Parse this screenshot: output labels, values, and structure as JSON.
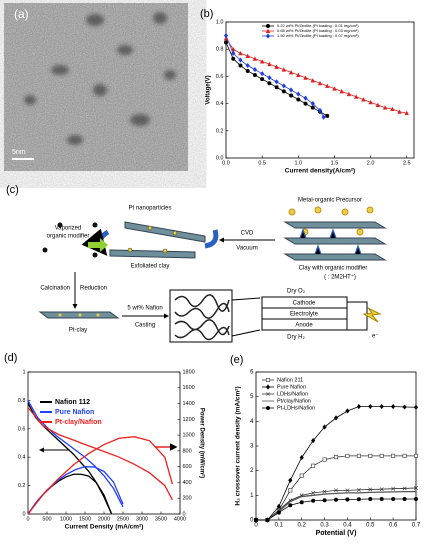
{
  "panels": {
    "a": {
      "label": "(a)",
      "scale_bar": "5nm"
    },
    "c": {
      "label": "(c)",
      "pt_nanoparticles": "Pt nanoparticles",
      "precursor": "Metal-organic Precursor",
      "vaporized": "Vaporized",
      "organic_modifier": "organic modifier",
      "cvd": "CVD",
      "vacuum": "Vacuum",
      "exfoliated": "Exfoliated clay",
      "clay_modifier": "Clay with organic modifier",
      "modifier_key": "( : 2M2HT⁺)",
      "calcination": "Calcination",
      "reduction": "Reduction",
      "pt_clay": "Pt-clay",
      "nafion": "5 wt% Nafion",
      "casting": "Casting",
      "dry_o2": "Dry O₂",
      "cathode": "Cathode",
      "electrolyte": "Electrolyte",
      "anode": "Anode",
      "dry_h2": "Dry H₂",
      "electron": "e⁻"
    }
  },
  "chart_data": [
    {
      "type": "line",
      "panel_label": "(b)",
      "xlabel": "Current density(A/cm²)",
      "ylabel": "Voltage(V)",
      "xlim": [
        0,
        2.6
      ],
      "ylim": [
        0,
        1.0
      ],
      "xticks": [
        {
          "value": 0,
          "label": "0.0"
        },
        0.5,
        {
          "value": 1,
          "label": "1.0"
        },
        1.5,
        {
          "value": 2,
          "label": "2.0"
        },
        2.5
      ],
      "yticks": [
        {
          "value": 0,
          "label": "0.0"
        },
        0.2,
        0.4,
        0.6,
        0.8,
        {
          "value": 1,
          "label": "1.0"
        }
      ],
      "legend": "upper right",
      "series": [
        {
          "name": "0.22 wt% Pt/Zeolite (Pt loading : 0.01 mg/cm²)",
          "color": "#000000",
          "marker": "circle",
          "x": [
            0,
            0.1,
            0.2,
            0.3,
            0.4,
            0.5,
            0.6,
            0.7,
            0.8,
            0.9,
            1.0,
            1.1,
            1.2,
            1.3,
            1.4
          ],
          "values": [
            0.85,
            0.73,
            0.68,
            0.64,
            0.61,
            0.58,
            0.55,
            0.52,
            0.49,
            0.46,
            0.43,
            0.4,
            0.37,
            0.34,
            0.31
          ]
        },
        {
          "name": "0.65 wt% Pt/Zeolite (Pt loading : 0.03 mg/cm²)",
          "color": "#e02020",
          "marker": "triangle",
          "x": [
            0,
            0.1,
            0.2,
            0.3,
            0.4,
            0.5,
            0.6,
            0.7,
            0.8,
            0.9,
            1.0,
            1.1,
            1.2,
            1.3,
            1.4,
            1.5,
            1.6,
            1.7,
            1.8,
            1.9,
            2.0,
            2.1,
            2.2,
            2.3,
            2.4,
            2.5
          ],
          "values": [
            0.88,
            0.8,
            0.77,
            0.75,
            0.73,
            0.71,
            0.69,
            0.67,
            0.65,
            0.63,
            0.61,
            0.59,
            0.57,
            0.55,
            0.53,
            0.51,
            0.49,
            0.47,
            0.45,
            0.43,
            0.41,
            0.39,
            0.37,
            0.36,
            0.34,
            0.33
          ]
        },
        {
          "name": "1.50 wt% Pt/Zeolite (Pt loading : 0.07 mg/cm²)",
          "color": "#2040e0",
          "marker": "diamond",
          "x": [
            0,
            0.1,
            0.2,
            0.3,
            0.4,
            0.5,
            0.6,
            0.7,
            0.8,
            0.9,
            1.0,
            1.1,
            1.2,
            1.3,
            1.35
          ],
          "values": [
            0.9,
            0.77,
            0.72,
            0.68,
            0.65,
            0.62,
            0.59,
            0.56,
            0.53,
            0.5,
            0.47,
            0.44,
            0.4,
            0.35,
            0.3
          ]
        }
      ]
    },
    {
      "type": "line",
      "panel_label": "(d)",
      "xlabel": "Current Density (mA/cm²)",
      "y2label": "Power Density (mW/cm²)",
      "xlim": [
        0,
        4000
      ],
      "ylim": [
        0,
        1
      ],
      "y2lim": [
        0,
        1800
      ],
      "xticks": [
        0,
        500,
        1000,
        1500,
        2000,
        2500,
        3000,
        3500,
        4000
      ],
      "yticks": [
        0,
        0.2,
        0.4,
        0.6,
        0.8,
        1
      ],
      "y2ticks": [
        0,
        200,
        400,
        600,
        800,
        1000,
        1200,
        1400,
        1600,
        1800
      ],
      "legend": "upper left",
      "series": [
        {
          "name": "Nafion 112",
          "color": "#000000",
          "x": [
            0,
            200,
            400,
            600,
            800,
            1000,
            1200,
            1400,
            1600,
            1800,
            2000,
            2200
          ],
          "values": [
            0.78,
            0.68,
            0.62,
            0.57,
            0.52,
            0.47,
            0.42,
            0.36,
            0.3,
            0.22,
            0.12,
            0
          ]
        },
        {
          "name": "Pure Nafion",
          "color": "#1f3fff",
          "x": [
            0,
            250,
            500,
            750,
            1000,
            1250,
            1500,
            1750,
            2000,
            2250,
            2500
          ],
          "values": [
            0.8,
            0.68,
            0.61,
            0.55,
            0.5,
            0.45,
            0.4,
            0.34,
            0.27,
            0.18,
            0.05
          ]
        },
        {
          "name": "Pt-clay/Nafion",
          "color": "#ee2020",
          "x": [
            0,
            400,
            800,
            1200,
            1600,
            2000,
            2400,
            2800,
            3200,
            3600,
            3800
          ],
          "values": [
            0.75,
            0.62,
            0.56,
            0.52,
            0.48,
            0.44,
            0.4,
            0.35,
            0.29,
            0.2,
            0.1
          ]
        },
        {
          "color": "#000000",
          "axis": "y2",
          "x": [
            0,
            200,
            400,
            600,
            800,
            1000,
            1200,
            1400,
            1600,
            1800,
            2000,
            2200
          ],
          "values": [
            0,
            136,
            248,
            342,
            416,
            470,
            504,
            504,
            480,
            396,
            240,
            0
          ]
        },
        {
          "color": "#1f3fff",
          "axis": "y2",
          "x": [
            0,
            250,
            500,
            750,
            1000,
            1250,
            1500,
            1750,
            2000,
            2250,
            2500
          ],
          "values": [
            0,
            170,
            305,
            412,
            500,
            562,
            600,
            595,
            540,
            405,
            125
          ]
        },
        {
          "color": "#ee2020",
          "axis": "y2",
          "x": [
            0,
            400,
            800,
            1200,
            1600,
            2000,
            2400,
            2800,
            3200,
            3600,
            3800
          ],
          "values": [
            0,
            248,
            448,
            624,
            768,
            880,
            960,
            980,
            928,
            720,
            380
          ]
        }
      ]
    },
    {
      "type": "line",
      "panel_label": "(e)",
      "xlabel": "Potential (V)",
      "ylabel": "H₂ crossover current density (mA/cm²)",
      "xlim": [
        0,
        0.7
      ],
      "ylim": [
        0,
        6
      ],
      "xticks": [
        0,
        0.1,
        0.2,
        0.3,
        0.4,
        0.5,
        0.6,
        0.7
      ],
      "yticks": [
        0,
        1,
        2,
        3,
        4,
        5,
        6
      ],
      "legend": "upper left",
      "series": [
        {
          "name": "Nafion 211",
          "color": "#333333",
          "marker": "square-open",
          "x": [
            0,
            0.05,
            0.1,
            0.15,
            0.2,
            0.25,
            0.3,
            0.35,
            0.4,
            0.45,
            0.5,
            0.55,
            0.6,
            0.65,
            0.7
          ],
          "values": [
            0,
            0,
            0.4,
            1.2,
            1.8,
            2.2,
            2.45,
            2.55,
            2.6,
            2.6,
            2.6,
            2.6,
            2.6,
            2.6,
            2.6
          ]
        },
        {
          "name": "Pure Nafion",
          "color": "#000000",
          "marker": "diamond",
          "x": [
            0,
            0.05,
            0.1,
            0.15,
            0.2,
            0.25,
            0.3,
            0.35,
            0.4,
            0.45,
            0.5,
            0.55,
            0.6,
            0.65,
            0.7
          ],
          "values": [
            0,
            0,
            0.55,
            1.61,
            2.53,
            3.22,
            3.77,
            4.14,
            4.42,
            4.6,
            4.6,
            4.6,
            4.6,
            4.58,
            4.57
          ]
        },
        {
          "name": "LDHs/Nafion",
          "color": "#333333",
          "marker": "x",
          "x": [
            0,
            0.05,
            0.1,
            0.15,
            0.2,
            0.25,
            0.3,
            0.35,
            0.4,
            0.45,
            0.5,
            0.55,
            0.6,
            0.65,
            0.7
          ],
          "values": [
            0,
            0,
            0.4,
            0.8,
            1.0,
            1.1,
            1.15,
            1.2,
            1.2,
            1.22,
            1.24,
            1.25,
            1.27,
            1.28,
            1.3
          ]
        },
        {
          "name": "Pt/clay/Nafion",
          "color": "#555555",
          "x": [
            0,
            0.05,
            0.1,
            0.15,
            0.2,
            0.25,
            0.3,
            0.35,
            0.4,
            0.45,
            0.5,
            0.55,
            0.6,
            0.65,
            0.7
          ],
          "values": [
            0,
            0,
            0.35,
            0.75,
            0.95,
            1.0,
            1.05,
            1.08,
            1.1,
            1.1,
            1.12,
            1.13,
            1.14,
            1.15,
            1.15
          ]
        },
        {
          "name": "Pt-LDHs/Nafion",
          "color": "#000000",
          "marker": "circle",
          "x": [
            0,
            0.05,
            0.1,
            0.15,
            0.2,
            0.25,
            0.3,
            0.35,
            0.4,
            0.45,
            0.5,
            0.55,
            0.6,
            0.65,
            0.7
          ],
          "values": [
            0,
            0,
            0.3,
            0.6,
            0.72,
            0.78,
            0.8,
            0.82,
            0.83,
            0.84,
            0.85,
            0.85,
            0.85,
            0.85,
            0.85
          ]
        }
      ]
    }
  ]
}
